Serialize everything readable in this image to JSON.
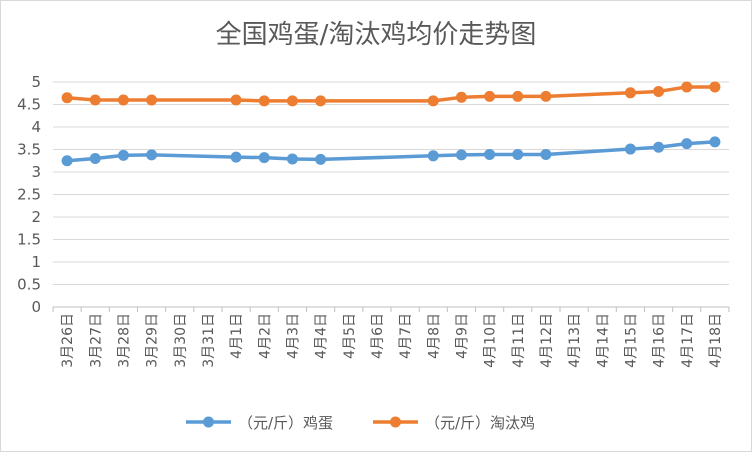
{
  "chart_data": {
    "type": "line",
    "title": "全国鸡蛋/淘汰鸡均价走势图",
    "xlabel": "",
    "ylabel": "",
    "categories": [
      "3月26日",
      "3月27日",
      "3月28日",
      "3月29日",
      "3月30日",
      "3月31日",
      "4月1日",
      "4月2日",
      "4月3日",
      "4月4日",
      "4月5日",
      "4月6日",
      "4月7日",
      "4月8日",
      "4月9日",
      "4月10日",
      "4月11日",
      "4月12日",
      "4月13日",
      "4月14日",
      "4月15日",
      "4月16日",
      "4月17日",
      "4月18日"
    ],
    "y_ticks": [
      "0",
      "0.5",
      "1",
      "1.5",
      "2",
      "2.5",
      "3",
      "3.5",
      "4",
      "4.5",
      "5"
    ],
    "ylim": [
      0,
      5
    ],
    "grid": true,
    "legend_position": "bottom",
    "series": [
      {
        "name": "（元/斤）鸡蛋",
        "color": "#5B9BD5",
        "values": [
          3.25,
          3.3,
          3.37,
          3.38,
          null,
          null,
          3.33,
          3.32,
          3.29,
          3.28,
          null,
          null,
          null,
          3.36,
          3.38,
          3.39,
          3.39,
          3.39,
          null,
          null,
          3.51,
          3.55,
          3.63,
          3.67
        ]
      },
      {
        "name": "（元/斤）淘汰鸡",
        "color": "#ED7D31",
        "values": [
          4.65,
          4.6,
          4.6,
          4.6,
          null,
          null,
          4.6,
          4.58,
          4.58,
          4.58,
          null,
          null,
          null,
          4.58,
          4.66,
          4.68,
          4.68,
          4.68,
          null,
          null,
          4.76,
          4.79,
          4.89,
          4.89
        ]
      }
    ]
  }
}
